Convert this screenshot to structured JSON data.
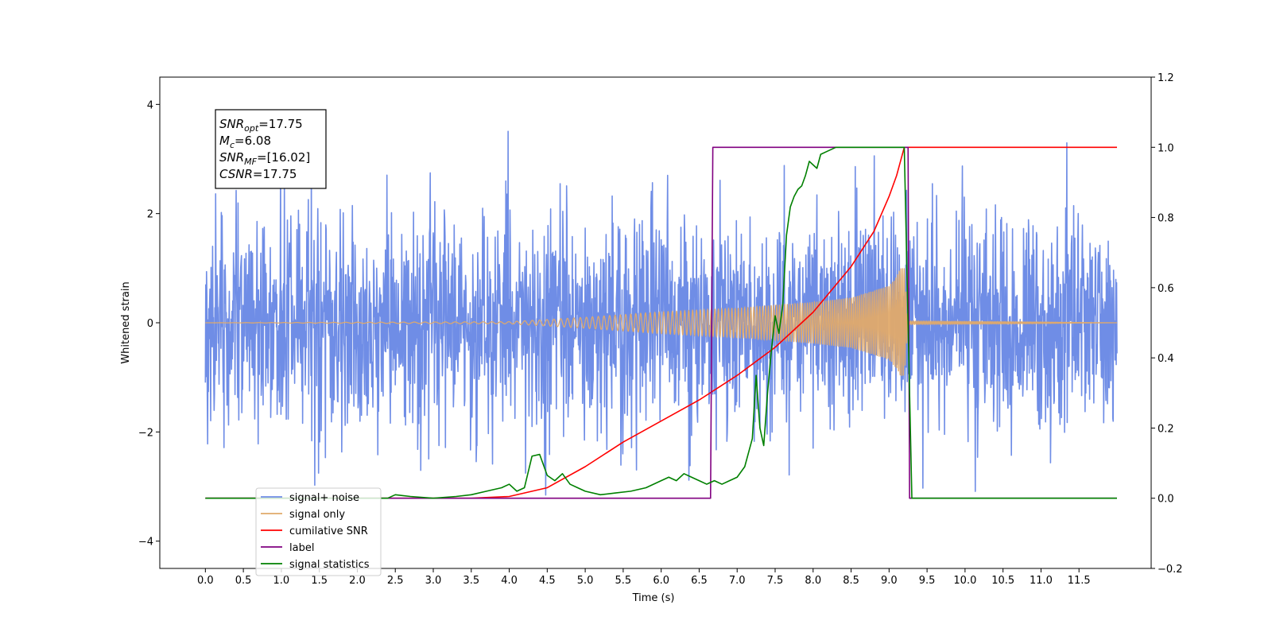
{
  "chart_data": {
    "type": "line",
    "xlabel": "Time (s)",
    "ylabel": "Whitened strain",
    "xlim": [
      -0.6,
      12.45
    ],
    "ylim": [
      -4.5,
      4.5
    ],
    "y2lim": [
      -0.2,
      1.2
    ],
    "x_ticks": [
      0.0,
      0.5,
      1.0,
      1.5,
      2.0,
      2.5,
      3.0,
      3.5,
      4.0,
      4.5,
      5.0,
      5.5,
      6.0,
      6.5,
      7.0,
      7.5,
      8.0,
      8.5,
      9.0,
      9.5,
      10.0,
      10.5,
      11.0,
      11.5
    ],
    "x_tick_labels": [
      "0.0",
      "0.5",
      "1.0",
      "1.5",
      "2.0",
      "2.5",
      "3.0",
      "3.5",
      "4.0",
      "4.5",
      "5.0",
      "5.5",
      "6.0",
      "6.5",
      "7.0",
      "7.5",
      "8.0",
      "8.5",
      "9.0",
      "9.5",
      "10.0",
      "10.5",
      "11.0",
      "11.5"
    ],
    "y_ticks": [
      -4,
      -2,
      0,
      2,
      4
    ],
    "y_tick_labels": [
      "−4",
      "−2",
      "0",
      "2",
      "4"
    ],
    "y2_ticks": [
      -0.2,
      0.0,
      0.2,
      0.4,
      0.6,
      0.8,
      1.0,
      1.2
    ],
    "y2_tick_labels": [
      "−0.2",
      "0.0",
      "0.2",
      "0.4",
      "0.6",
      "0.8",
      "1.0",
      "1.2"
    ],
    "legend_placement": "lower-left",
    "grid": false,
    "annotation": {
      "lines": [
        {
          "base": "SNR",
          "sub": "opt",
          "rest": "=17.75"
        },
        {
          "base": "M",
          "sub": "c",
          "rest": "=6.08"
        },
        {
          "base": "SNR",
          "sub": "MF",
          "rest": "=[16.02]"
        },
        {
          "base": "CSNR",
          "sub": "",
          "rest": "=17.75"
        }
      ]
    },
    "series": [
      {
        "name": "signal+ noise",
        "axis": "left",
        "color": "#6f8de6",
        "kind": "noise",
        "x_range": [
          0.0,
          12.0
        ],
        "sample_spacing": 0.005,
        "amplitude_std": 1.0,
        "display_range": [
          -4.1,
          4.1
        ]
      },
      {
        "name": "signal only",
        "axis": "left",
        "color": "#e0aa6a",
        "kind": "chirp",
        "x_range": [
          0.0,
          12.0
        ],
        "envelope": {
          "x": [
            0.0,
            4.0,
            5.0,
            6.0,
            7.0,
            8.0,
            8.5,
            9.0,
            9.1,
            9.15,
            9.2,
            9.25,
            12.0
          ],
          "y": [
            0.0,
            0.02,
            0.1,
            0.2,
            0.27,
            0.38,
            0.46,
            0.68,
            0.85,
            1.0,
            1.0,
            0.03,
            0.0
          ]
        }
      },
      {
        "name": "cumilative SNR",
        "axis": "right",
        "color": "#ff0000",
        "x": [
          0.0,
          3.5,
          4.0,
          4.5,
          5.0,
          5.5,
          6.0,
          6.5,
          7.0,
          7.5,
          8.0,
          8.5,
          8.8,
          9.0,
          9.1,
          9.2,
          9.22,
          11.5,
          12.0
        ],
        "values": [
          0.0,
          0.0,
          0.005,
          0.03,
          0.09,
          0.16,
          0.22,
          0.28,
          0.35,
          0.43,
          0.53,
          0.66,
          0.76,
          0.86,
          0.92,
          1.0,
          1.0,
          1.0,
          1.0
        ]
      },
      {
        "name": "label",
        "axis": "right",
        "color": "#800080",
        "x": [
          0.0,
          6.65,
          6.68,
          9.25,
          9.27,
          12.0
        ],
        "values": [
          0.0,
          0.0,
          1.0,
          1.0,
          0.0,
          0.0
        ]
      },
      {
        "name": "signal statistics",
        "axis": "right",
        "color": "#008000",
        "x": [
          0.0,
          2.4,
          2.5,
          2.7,
          3.0,
          3.3,
          3.5,
          3.7,
          3.9,
          4.0,
          4.1,
          4.2,
          4.3,
          4.4,
          4.5,
          4.6,
          4.7,
          4.8,
          4.9,
          5.0,
          5.2,
          5.4,
          5.6,
          5.8,
          6.0,
          6.1,
          6.2,
          6.3,
          6.4,
          6.5,
          6.6,
          6.7,
          6.8,
          6.9,
          7.0,
          7.1,
          7.2,
          7.25,
          7.3,
          7.35,
          7.4,
          7.45,
          7.5,
          7.55,
          7.6,
          7.65,
          7.7,
          7.75,
          7.8,
          7.85,
          7.9,
          7.95,
          8.0,
          8.05,
          8.1,
          8.2,
          8.3,
          9.2,
          9.3,
          11.5,
          12.0
        ],
        "values": [
          0.0,
          0.0,
          0.01,
          0.005,
          0.0,
          0.005,
          0.01,
          0.02,
          0.03,
          0.04,
          0.02,
          0.03,
          0.12,
          0.125,
          0.065,
          0.05,
          0.07,
          0.04,
          0.03,
          0.02,
          0.01,
          0.015,
          0.02,
          0.03,
          0.05,
          0.06,
          0.05,
          0.07,
          0.06,
          0.05,
          0.04,
          0.05,
          0.04,
          0.05,
          0.06,
          0.09,
          0.17,
          0.35,
          0.2,
          0.15,
          0.3,
          0.42,
          0.52,
          0.47,
          0.55,
          0.75,
          0.83,
          0.86,
          0.88,
          0.89,
          0.92,
          0.96,
          0.95,
          0.94,
          0.98,
          0.99,
          1.0,
          1.0,
          0.0,
          0.0,
          0.0
        ]
      }
    ]
  }
}
